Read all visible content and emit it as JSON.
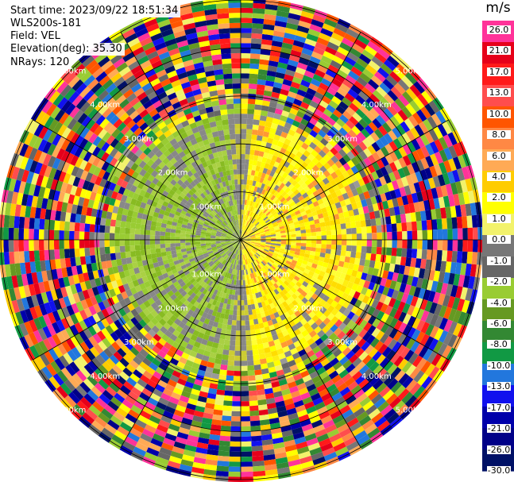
{
  "header": {
    "start_time": "Start time: 2023/09/22 18:51:34",
    "instrument": "WLS200s-181",
    "field": "Field: VEL",
    "elevation": "Elevation(deg): 35.30",
    "nrays": "NRays: 120"
  },
  "chart_data": {
    "type": "heatmap",
    "projection": "polar-ppi",
    "field": "VEL",
    "units": "m/s",
    "ring_labels": [
      "1.00km",
      "2.00km",
      "3.00km",
      "4.00km",
      "5.00km"
    ],
    "ring_radii_km": [
      1,
      2,
      3,
      4,
      5
    ],
    "max_range_km": 5.0,
    "n_rays": 120,
    "colorbar": {
      "label": "m/s",
      "ticks": [
        "26.0",
        "21.0",
        "17.0",
        "13.0",
        "10.0",
        "8.0",
        "6.0",
        "4.0",
        "2.0",
        "1.0",
        "0.0",
        "-1.0",
        "-2.0",
        "-4.0",
        "-6.0",
        "-8.0",
        "-10.0",
        "-13.0",
        "-17.0",
        "-21.0",
        "-26.0",
        "-30.0"
      ],
      "colors": [
        "#ff3399",
        "#e6001a",
        "#ff1a1a",
        "#ff4d4d",
        "#ff5500",
        "#ff8844",
        "#ffaa55",
        "#ffcc00",
        "#ffff00",
        "#f2f26b",
        "#777777",
        "#666666",
        "#99cc33",
        "#669922",
        "#338833",
        "#119944",
        "#2277dd",
        "#1111ee",
        "#0000aa",
        "#000088",
        "#001166"
      ]
    }
  }
}
